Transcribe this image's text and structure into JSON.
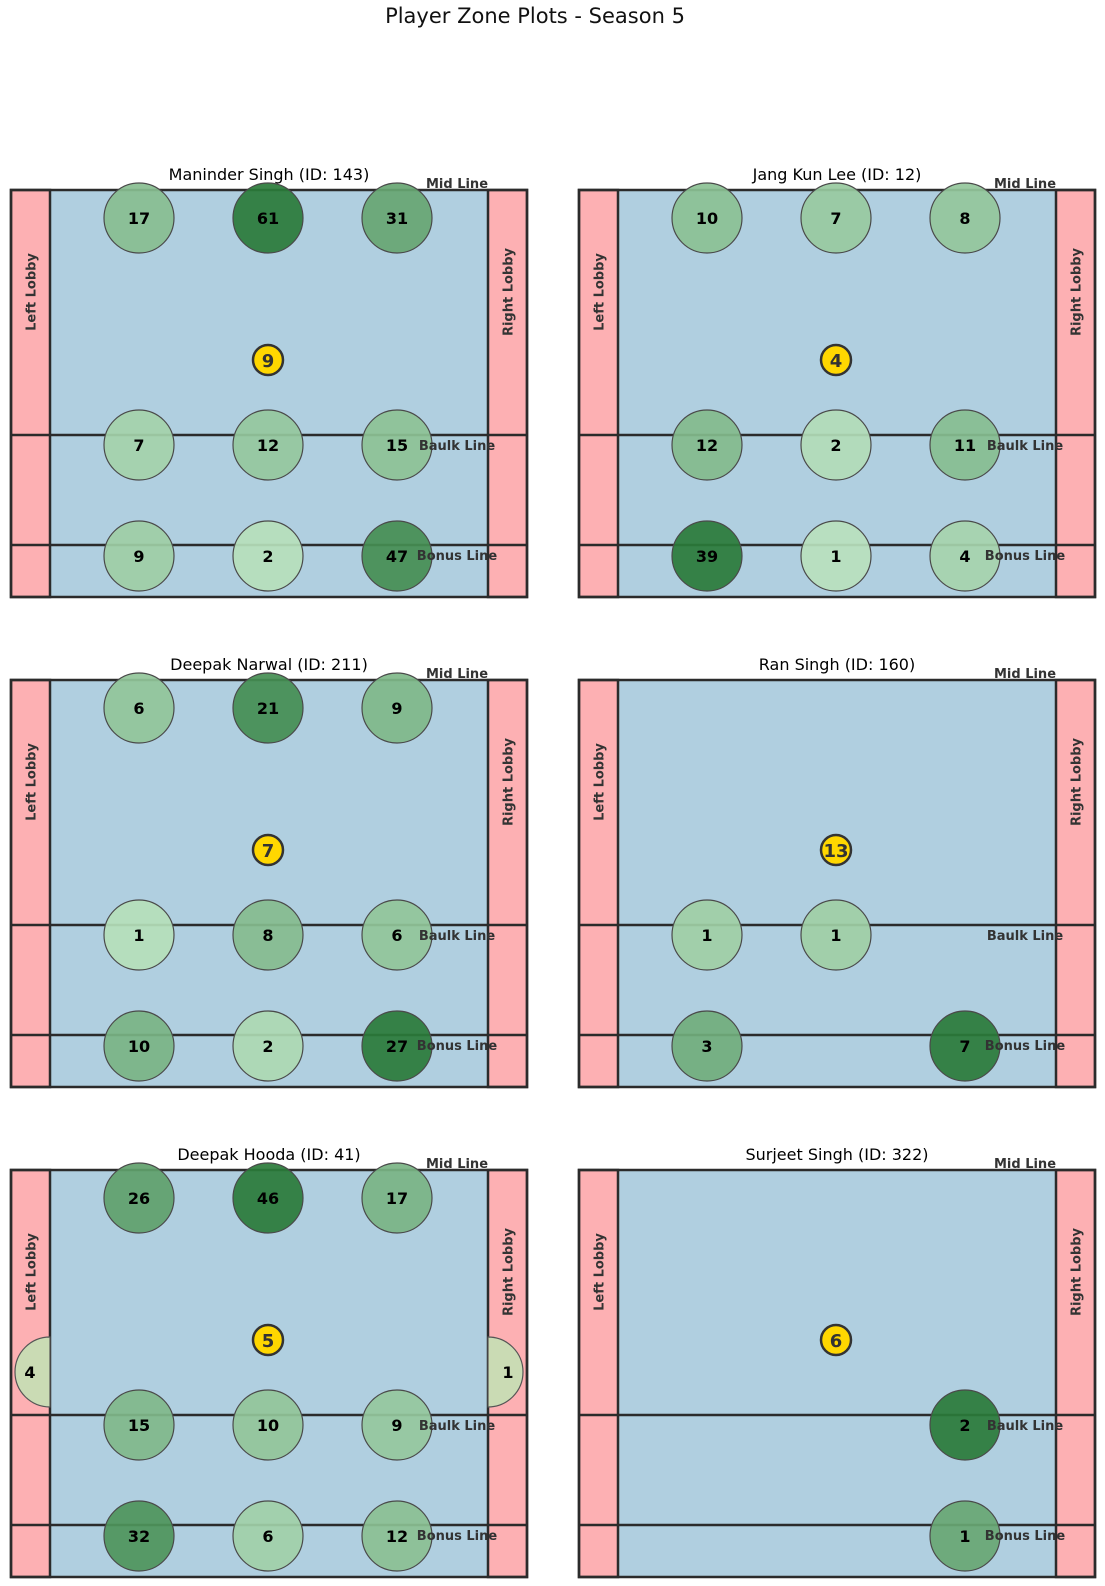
{
  "title": "Player Zone Plots - Season 5",
  "colors": {
    "court": "#b0cfe0",
    "lobby": "#fdb0b3",
    "border": "#2b2b2b",
    "center_marker": "#ffd700",
    "zone_light": "#c2e8c6",
    "zone_dark": "#2a7b3a"
  },
  "labels": {
    "left_lobby": "Left Lobby",
    "right_lobby": "Right Lobby",
    "mid_line": "Mid Line",
    "baulk_line": "Baulk Line",
    "bonus_line": "Bonus Line"
  },
  "chart_data": {
    "type": "heatmap",
    "zone_rows": [
      "mid",
      "baulk",
      "bonus"
    ],
    "zone_cols": [
      "left",
      "center",
      "right"
    ],
    "players": [
      {
        "title": "Maninder Singh (ID: 143)",
        "center": 9,
        "lobby_left": null,
        "lobby_right": null,
        "zones": [
          [
            17,
            61,
            31
          ],
          [
            7,
            12,
            15
          ],
          [
            9,
            2,
            47
          ]
        ]
      },
      {
        "title": "Jang Kun Lee (ID: 12)",
        "center": 4,
        "lobby_left": null,
        "lobby_right": null,
        "zones": [
          [
            10,
            7,
            8
          ],
          [
            12,
            2,
            11
          ],
          [
            39,
            1,
            4
          ]
        ]
      },
      {
        "title": "Deepak Narwal (ID: 211)",
        "center": 7,
        "lobby_left": null,
        "lobby_right": null,
        "zones": [
          [
            6,
            21,
            9
          ],
          [
            1,
            8,
            6
          ],
          [
            10,
            2,
            27
          ]
        ]
      },
      {
        "title": "Ran Singh (ID: 160)",
        "center": 13,
        "lobby_left": null,
        "lobby_right": null,
        "zones": [
          [
            null,
            null,
            null
          ],
          [
            1,
            1,
            null
          ],
          [
            3,
            null,
            7
          ]
        ]
      },
      {
        "title": "Deepak Hooda (ID: 41)",
        "center": 5,
        "lobby_left": 4,
        "lobby_right": 1,
        "zones": [
          [
            26,
            46,
            17
          ],
          [
            15,
            10,
            9
          ],
          [
            32,
            6,
            12
          ]
        ]
      },
      {
        "title": "Surjeet Singh (ID: 322)",
        "center": 6,
        "lobby_left": null,
        "lobby_right": null,
        "zones": [
          [
            null,
            null,
            null
          ],
          [
            null,
            null,
            2
          ],
          [
            null,
            null,
            1
          ]
        ]
      }
    ]
  }
}
